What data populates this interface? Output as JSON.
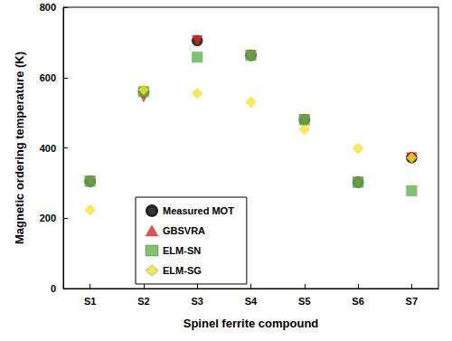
{
  "chart_data": {
    "type": "scatter",
    "x_label": "Spinel ferrite compound",
    "y_label": "Magnetic ordering temperature (K)",
    "categories": [
      "S1",
      "S2",
      "S3",
      "S4",
      "S5",
      "S6",
      "S7"
    ],
    "series": [
      {
        "name": "Measured MOT",
        "color": "#000000",
        "marker": "circle",
        "values": [
          305,
          560,
          705,
          663,
          480,
          302,
          372
        ]
      },
      {
        "name": "GBSVRA",
        "color": "#e8231e",
        "marker": "triangle-down",
        "values": [
          305,
          545,
          705,
          663,
          480,
          302,
          372
        ]
      },
      {
        "name": "ELM-SN",
        "color": "#5cb84a",
        "marker": "square",
        "values": [
          305,
          560,
          658,
          663,
          480,
          302,
          278
        ]
      },
      {
        "name": "ELM-SG",
        "color": "#f7e61e",
        "marker": "diamond",
        "values": [
          223,
          565,
          555,
          530,
          453,
          398,
          372
        ]
      }
    ],
    "ylim": [
      0,
      800
    ],
    "yticks": [
      0,
      200,
      400,
      600,
      800
    ],
    "grid": false,
    "legend": "lower left"
  }
}
